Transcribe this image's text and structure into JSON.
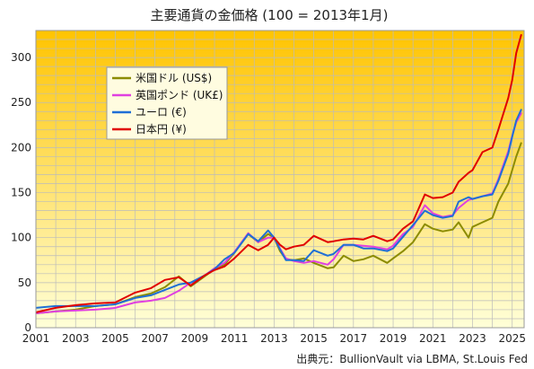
{
  "chart_data": {
    "type": "line",
    "title": "主要通貨の金価格 (100 = 2013年1月)",
    "source": "出典元：BullionVault via LBMA, St.Louis Fed",
    "xlabel": "",
    "ylabel": "",
    "xlim": [
      2001,
      2025.6
    ],
    "ylim": [
      0,
      330
    ],
    "x_ticks": [
      2001,
      2003,
      2005,
      2007,
      2009,
      2011,
      2013,
      2015,
      2017,
      2019,
      2021,
      2023,
      2025
    ],
    "y_ticks": [
      0,
      50,
      100,
      150,
      200,
      250,
      300
    ],
    "grid": true,
    "legend_position": "upper-left",
    "background_gradient": [
      "#ffc400",
      "#ffffd8"
    ],
    "series": [
      {
        "name": "米国ドル (US$)",
        "color": "#8c8c00",
        "points": [
          [
            2001.0,
            16
          ],
          [
            2002.0,
            18
          ],
          [
            2003.0,
            20
          ],
          [
            2004.0,
            24
          ],
          [
            2005.0,
            26
          ],
          [
            2006.0,
            34
          ],
          [
            2006.8,
            38
          ],
          [
            2007.5,
            45
          ],
          [
            2008.2,
            57
          ],
          [
            2008.8,
            46
          ],
          [
            2009.5,
            57
          ],
          [
            2010.0,
            65
          ],
          [
            2010.5,
            70
          ],
          [
            2011.0,
            83
          ],
          [
            2011.7,
            104
          ],
          [
            2012.2,
            95
          ],
          [
            2012.7,
            104
          ],
          [
            2013.0,
            100
          ],
          [
            2013.3,
            85
          ],
          [
            2013.6,
            76
          ],
          [
            2014.0,
            75
          ],
          [
            2014.5,
            77
          ],
          [
            2015.0,
            72
          ],
          [
            2015.7,
            66
          ],
          [
            2016.0,
            67
          ],
          [
            2016.5,
            80
          ],
          [
            2017.0,
            74
          ],
          [
            2017.5,
            76
          ],
          [
            2018.0,
            80
          ],
          [
            2018.7,
            72
          ],
          [
            2019.0,
            77
          ],
          [
            2019.5,
            85
          ],
          [
            2020.0,
            95
          ],
          [
            2020.6,
            115
          ],
          [
            2021.0,
            110
          ],
          [
            2021.5,
            107
          ],
          [
            2022.0,
            109
          ],
          [
            2022.3,
            117
          ],
          [
            2022.8,
            100
          ],
          [
            2023.0,
            112
          ],
          [
            2023.5,
            117
          ],
          [
            2024.0,
            122
          ],
          [
            2024.3,
            140
          ],
          [
            2024.8,
            160
          ],
          [
            2025.0,
            175
          ],
          [
            2025.2,
            190
          ],
          [
            2025.45,
            205
          ]
        ]
      },
      {
        "name": "英国ポンド (UK£)",
        "color": "#e040e0",
        "points": [
          [
            2001.0,
            16
          ],
          [
            2002.0,
            18
          ],
          [
            2003.0,
            19
          ],
          [
            2004.0,
            20
          ],
          [
            2005.0,
            22
          ],
          [
            2006.0,
            28
          ],
          [
            2006.8,
            30
          ],
          [
            2007.5,
            33
          ],
          [
            2008.2,
            41
          ],
          [
            2008.8,
            50
          ],
          [
            2009.5,
            58
          ],
          [
            2010.0,
            66
          ],
          [
            2010.5,
            72
          ],
          [
            2011.0,
            84
          ],
          [
            2011.7,
            105
          ],
          [
            2012.2,
            95
          ],
          [
            2012.7,
            100
          ],
          [
            2013.0,
            100
          ],
          [
            2013.3,
            88
          ],
          [
            2013.6,
            77
          ],
          [
            2014.0,
            74
          ],
          [
            2014.5,
            72
          ],
          [
            2015.0,
            74
          ],
          [
            2015.7,
            70
          ],
          [
            2016.0,
            76
          ],
          [
            2016.5,
            92
          ],
          [
            2017.0,
            92
          ],
          [
            2017.5,
            91
          ],
          [
            2018.0,
            90
          ],
          [
            2018.7,
            87
          ],
          [
            2019.0,
            91
          ],
          [
            2019.5,
            104
          ],
          [
            2020.0,
            112
          ],
          [
            2020.6,
            136
          ],
          [
            2021.0,
            127
          ],
          [
            2021.5,
            123
          ],
          [
            2022.0,
            125
          ],
          [
            2022.3,
            133
          ],
          [
            2022.8,
            142
          ],
          [
            2023.0,
            143
          ],
          [
            2023.5,
            146
          ],
          [
            2024.0,
            149
          ],
          [
            2024.3,
            165
          ],
          [
            2024.8,
            196
          ],
          [
            2025.0,
            213
          ],
          [
            2025.2,
            228
          ],
          [
            2025.45,
            238
          ]
        ]
      },
      {
        "name": "ユーロ (€)",
        "color": "#1f6fd6",
        "points": [
          [
            2001.0,
            22
          ],
          [
            2002.0,
            24
          ],
          [
            2003.0,
            24
          ],
          [
            2004.0,
            24
          ],
          [
            2005.0,
            26
          ],
          [
            2006.0,
            33
          ],
          [
            2006.8,
            36
          ],
          [
            2007.5,
            42
          ],
          [
            2008.2,
            48
          ],
          [
            2008.8,
            50
          ],
          [
            2009.5,
            58
          ],
          [
            2010.0,
            65
          ],
          [
            2010.5,
            76
          ],
          [
            2011.0,
            83
          ],
          [
            2011.7,
            104
          ],
          [
            2012.2,
            96
          ],
          [
            2012.7,
            108
          ],
          [
            2013.0,
            100
          ],
          [
            2013.3,
            87
          ],
          [
            2013.6,
            75
          ],
          [
            2014.0,
            75
          ],
          [
            2014.5,
            74
          ],
          [
            2015.0,
            86
          ],
          [
            2015.7,
            80
          ],
          [
            2016.0,
            82
          ],
          [
            2016.5,
            92
          ],
          [
            2017.0,
            92
          ],
          [
            2017.5,
            88
          ],
          [
            2018.0,
            88
          ],
          [
            2018.7,
            85
          ],
          [
            2019.0,
            88
          ],
          [
            2019.5,
            101
          ],
          [
            2020.0,
            114
          ],
          [
            2020.6,
            130
          ],
          [
            2021.0,
            125
          ],
          [
            2021.5,
            122
          ],
          [
            2022.0,
            124
          ],
          [
            2022.3,
            140
          ],
          [
            2022.8,
            145
          ],
          [
            2023.0,
            143
          ],
          [
            2023.5,
            146
          ],
          [
            2024.0,
            148
          ],
          [
            2024.3,
            163
          ],
          [
            2024.8,
            193
          ],
          [
            2025.0,
            212
          ],
          [
            2025.2,
            230
          ],
          [
            2025.45,
            242
          ]
        ]
      },
      {
        "name": "日本円 (¥)",
        "color": "#e00000",
        "points": [
          [
            2001.0,
            17
          ],
          [
            2002.0,
            22
          ],
          [
            2003.0,
            25
          ],
          [
            2004.0,
            27
          ],
          [
            2005.0,
            28
          ],
          [
            2006.0,
            39
          ],
          [
            2006.8,
            44
          ],
          [
            2007.5,
            53
          ],
          [
            2008.2,
            56
          ],
          [
            2008.8,
            47
          ],
          [
            2009.5,
            58
          ],
          [
            2010.0,
            64
          ],
          [
            2010.5,
            68
          ],
          [
            2011.0,
            77
          ],
          [
            2011.7,
            92
          ],
          [
            2012.2,
            86
          ],
          [
            2012.7,
            92
          ],
          [
            2013.0,
            100
          ],
          [
            2013.3,
            92
          ],
          [
            2013.6,
            87
          ],
          [
            2014.0,
            90
          ],
          [
            2014.5,
            92
          ],
          [
            2015.0,
            102
          ],
          [
            2015.7,
            95
          ],
          [
            2016.0,
            96
          ],
          [
            2016.5,
            98
          ],
          [
            2017.0,
            99
          ],
          [
            2017.5,
            98
          ],
          [
            2018.0,
            102
          ],
          [
            2018.7,
            96
          ],
          [
            2019.0,
            98
          ],
          [
            2019.5,
            110
          ],
          [
            2020.0,
            118
          ],
          [
            2020.6,
            148
          ],
          [
            2021.0,
            144
          ],
          [
            2021.5,
            145
          ],
          [
            2022.0,
            150
          ],
          [
            2022.3,
            162
          ],
          [
            2022.8,
            172
          ],
          [
            2023.0,
            175
          ],
          [
            2023.5,
            195
          ],
          [
            2024.0,
            200
          ],
          [
            2024.3,
            220
          ],
          [
            2024.8,
            255
          ],
          [
            2025.0,
            275
          ],
          [
            2025.2,
            305
          ],
          [
            2025.45,
            325
          ]
        ]
      }
    ]
  }
}
